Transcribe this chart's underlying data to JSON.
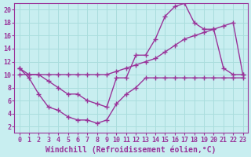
{
  "xlabel": "Windchill (Refroidissement éolien,°C)",
  "background_color": "#c8eef0",
  "grid_color": "#aadddd",
  "line_color": "#993399",
  "xlim": [
    -0.5,
    23.5
  ],
  "ylim": [
    1,
    21
  ],
  "xticks": [
    0,
    1,
    2,
    3,
    4,
    5,
    6,
    7,
    8,
    9,
    10,
    11,
    12,
    13,
    14,
    15,
    16,
    17,
    18,
    19,
    20,
    21,
    22,
    23
  ],
  "yticks": [
    2,
    4,
    6,
    8,
    10,
    12,
    14,
    16,
    18,
    20
  ],
  "curve1_x": [
    0,
    1,
    2,
    3,
    4,
    5,
    6,
    7,
    8,
    9,
    10,
    11,
    12,
    13,
    14,
    15,
    16,
    17,
    18,
    19,
    20,
    21,
    22,
    23
  ],
  "curve1_y": [
    11,
    10,
    10,
    9,
    8,
    7,
    7,
    6,
    5.5,
    5,
    9.5,
    9.5,
    13,
    13,
    15.5,
    19,
    20.5,
    21,
    18,
    17,
    17,
    11,
    10,
    10
  ],
  "curve2_x": [
    0,
    1,
    2,
    3,
    4,
    5,
    6,
    7,
    8,
    9,
    10,
    11,
    12,
    13,
    14,
    15,
    16,
    17,
    18,
    19,
    20,
    21,
    22,
    23
  ],
  "curve2_y": [
    10,
    10,
    10,
    10,
    10,
    10,
    10,
    10,
    10,
    10,
    10.5,
    11,
    11.5,
    12,
    12.5,
    13.5,
    14.5,
    15.5,
    16,
    16.5,
    17,
    17.5,
    18,
    10
  ],
  "curve3_x": [
    0,
    1,
    2,
    3,
    4,
    5,
    6,
    7,
    8,
    9,
    10,
    11,
    12,
    13,
    14,
    15,
    16,
    17,
    18,
    19,
    20,
    21,
    22,
    23
  ],
  "curve3_y": [
    11,
    9.5,
    7,
    5,
    4.5,
    3.5,
    3,
    3,
    2.5,
    3,
    5.5,
    7,
    8,
    9.5,
    9.5,
    9.5,
    9.5,
    9.5,
    9.5,
    9.5,
    9.5,
    9.5,
    9.5,
    9.5
  ],
  "tick_fontsize": 6,
  "label_fontsize": 7
}
